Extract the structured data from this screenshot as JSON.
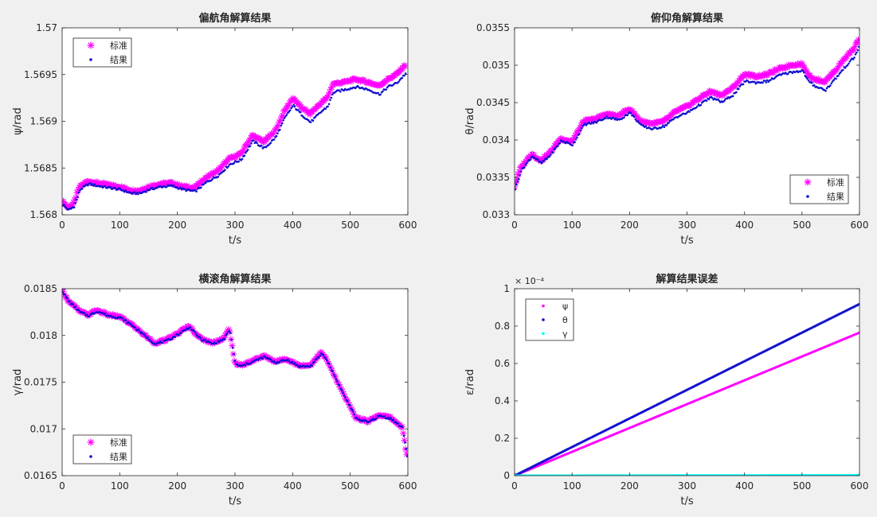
{
  "chart_data": [
    {
      "type": "scatter",
      "title": "偏航角解算结果",
      "xlabel": "t/s",
      "ylabel": "ψ/rad",
      "xlim": [
        0,
        600
      ],
      "ylim": [
        1.568,
        1.57
      ],
      "xticks": [
        0,
        100,
        200,
        300,
        400,
        500,
        600
      ],
      "xtick_labels": [
        "0",
        "100",
        "200",
        "300",
        "400",
        "500",
        "600"
      ],
      "yticks": [
        1.568,
        1.5685,
        1.569,
        1.5695,
        1.57
      ],
      "ytick_labels": [
        "1.568",
        "1.5685",
        "1.569",
        "1.5695",
        "1.57"
      ],
      "exponent_label": "",
      "legend": {
        "position": "top-left",
        "entries": [
          "标准",
          "结果"
        ]
      },
      "grid": false,
      "series": [
        {
          "name": "标准",
          "marker": "star",
          "color": "#ff00ff",
          "x": [
            0,
            10,
            20,
            30,
            45,
            60,
            80,
            100,
            120,
            135,
            150,
            170,
            190,
            210,
            230,
            250,
            270,
            290,
            310,
            330,
            350,
            370,
            385,
            400,
            415,
            430,
            450,
            460,
            470,
            490,
            510,
            530,
            550,
            565,
            580,
            595
          ],
          "y": [
            1.56815,
            1.56808,
            1.56812,
            1.5683,
            1.56836,
            1.56834,
            1.56832,
            1.5683,
            1.56826,
            1.56826,
            1.5683,
            1.56833,
            1.56834,
            1.5683,
            1.56829,
            1.5684,
            1.56847,
            1.5686,
            1.56865,
            1.56885,
            1.56878,
            1.5689,
            1.5691,
            1.56925,
            1.56915,
            1.56908,
            1.5692,
            1.56925,
            1.5694,
            1.56942,
            1.56945,
            1.56942,
            1.56938,
            1.56945,
            1.5695,
            1.5696
          ]
        },
        {
          "name": "结果",
          "marker": "dot",
          "color": "#1010d0",
          "x": [
            0,
            10,
            20,
            30,
            45,
            60,
            80,
            100,
            120,
            135,
            150,
            170,
            190,
            210,
            230,
            250,
            270,
            290,
            310,
            330,
            350,
            370,
            385,
            400,
            415,
            430,
            450,
            460,
            470,
            490,
            510,
            530,
            550,
            565,
            580,
            595
          ],
          "y": [
            1.56812,
            1.56806,
            1.5681,
            1.56828,
            1.56834,
            1.56832,
            1.5683,
            1.56828,
            1.56824,
            1.56824,
            1.56828,
            1.56831,
            1.56832,
            1.56828,
            1.56826,
            1.56836,
            1.56843,
            1.56855,
            1.5686,
            1.5688,
            1.56872,
            1.56884,
            1.56904,
            1.56918,
            1.56908,
            1.569,
            1.56912,
            1.56917,
            1.56932,
            1.56935,
            1.56938,
            1.56935,
            1.5693,
            1.56938,
            1.56942,
            1.56952
          ]
        }
      ]
    },
    {
      "type": "scatter",
      "title": "俯仰角解算结果",
      "xlabel": "t/s",
      "ylabel": "θ/rad",
      "xlim": [
        0,
        600
      ],
      "ylim": [
        0.033,
        0.0355
      ],
      "xticks": [
        0,
        100,
        200,
        300,
        400,
        500,
        600
      ],
      "xtick_labels": [
        "0",
        "100",
        "200",
        "300",
        "400",
        "500",
        "600"
      ],
      "yticks": [
        0.033,
        0.0335,
        0.034,
        0.0345,
        0.035,
        0.0355
      ],
      "ytick_labels": [
        "0.033",
        "0.0335",
        "0.034",
        "0.0345",
        "0.035",
        "0.0355"
      ],
      "exponent_label": "",
      "legend": {
        "position": "bottom-right",
        "entries": [
          "标准",
          "结果"
        ]
      },
      "grid": false,
      "series": [
        {
          "name": "标准",
          "marker": "star",
          "color": "#ff00ff",
          "x": [
            0,
            10,
            20,
            30,
            45,
            60,
            80,
            100,
            120,
            140,
            160,
            180,
            200,
            220,
            240,
            260,
            280,
            300,
            320,
            340,
            360,
            380,
            400,
            420,
            440,
            460,
            480,
            500,
            510,
            520,
            540,
            560,
            575,
            590,
            598
          ],
          "y": [
            0.03338,
            0.03362,
            0.03372,
            0.03382,
            0.03372,
            0.03382,
            0.03402,
            0.03398,
            0.03425,
            0.03428,
            0.03435,
            0.03432,
            0.03442,
            0.03425,
            0.03422,
            0.03425,
            0.03438,
            0.03445,
            0.03455,
            0.03465,
            0.0346,
            0.0347,
            0.03488,
            0.03485,
            0.03488,
            0.03495,
            0.035,
            0.03502,
            0.03488,
            0.03482,
            0.03478,
            0.03495,
            0.0351,
            0.03522,
            0.03535
          ]
        },
        {
          "name": "结果",
          "marker": "dot",
          "color": "#1010d0",
          "x": [
            0,
            10,
            20,
            30,
            45,
            60,
            80,
            100,
            120,
            140,
            160,
            180,
            200,
            220,
            240,
            260,
            280,
            300,
            320,
            340,
            360,
            380,
            400,
            420,
            440,
            460,
            480,
            500,
            510,
            520,
            540,
            560,
            575,
            590,
            598
          ],
          "y": [
            0.03336,
            0.0336,
            0.0337,
            0.0338,
            0.0337,
            0.0338,
            0.034,
            0.03395,
            0.03422,
            0.03425,
            0.03432,
            0.03428,
            0.03438,
            0.0342,
            0.03416,
            0.0342,
            0.03432,
            0.03438,
            0.03448,
            0.03458,
            0.03452,
            0.03462,
            0.0348,
            0.03478,
            0.0348,
            0.03488,
            0.03492,
            0.03494,
            0.0348,
            0.03474,
            0.03468,
            0.03486,
            0.035,
            0.03512,
            0.03525
          ]
        }
      ]
    },
    {
      "type": "scatter",
      "title": "横滚角解算结果",
      "xlabel": "t/s",
      "ylabel": "γ/rad",
      "xlim": [
        0,
        600
      ],
      "ylim": [
        0.0165,
        0.0185
      ],
      "xticks": [
        0,
        100,
        200,
        300,
        400,
        500,
        600
      ],
      "xtick_labels": [
        "0",
        "100",
        "200",
        "300",
        "400",
        "500",
        "600"
      ],
      "yticks": [
        0.0165,
        0.017,
        0.0175,
        0.018,
        0.0185
      ],
      "ytick_labels": [
        "0.0165",
        "0.017",
        "0.0175",
        "0.018",
        "0.0185"
      ],
      "exponent_label": "",
      "legend": {
        "position": "bottom-left",
        "entries": [
          "标准",
          "结果"
        ]
      },
      "grid": false,
      "series": [
        {
          "name": "标准",
          "marker": "star",
          "color": "#ff00ff",
          "x": [
            0,
            10,
            20,
            30,
            45,
            60,
            80,
            100,
            120,
            140,
            160,
            180,
            200,
            220,
            240,
            260,
            280,
            290,
            300,
            310,
            330,
            350,
            370,
            390,
            410,
            430,
            450,
            460,
            470,
            490,
            510,
            530,
            550,
            570,
            590,
            598
          ],
          "y": [
            0.01848,
            0.01838,
            0.01832,
            0.01826,
            0.01822,
            0.01827,
            0.01822,
            0.0182,
            0.01812,
            0.01802,
            0.01792,
            0.01795,
            0.01802,
            0.0181,
            0.01797,
            0.01792,
            0.01797,
            0.01807,
            0.0177,
            0.01768,
            0.01773,
            0.01778,
            0.01772,
            0.01775,
            0.01768,
            0.01768,
            0.01782,
            0.01773,
            0.0176,
            0.01735,
            0.01712,
            0.01708,
            0.01715,
            0.01712,
            0.01702,
            0.01672
          ]
        },
        {
          "name": "结果",
          "marker": "dot",
          "color": "#1010d0",
          "x": [
            0,
            10,
            20,
            30,
            45,
            60,
            80,
            100,
            120,
            140,
            160,
            180,
            200,
            220,
            240,
            260,
            280,
            290,
            300,
            310,
            330,
            350,
            370,
            390,
            410,
            430,
            450,
            460,
            470,
            490,
            510,
            530,
            550,
            570,
            590,
            598
          ],
          "y": [
            0.01848,
            0.01838,
            0.01832,
            0.01826,
            0.01822,
            0.01827,
            0.01822,
            0.0182,
            0.01812,
            0.01802,
            0.01792,
            0.01795,
            0.01802,
            0.0181,
            0.01797,
            0.01792,
            0.01797,
            0.01807,
            0.0177,
            0.01768,
            0.01773,
            0.01778,
            0.01772,
            0.01775,
            0.01768,
            0.01768,
            0.01782,
            0.01773,
            0.0176,
            0.01735,
            0.01712,
            0.01708,
            0.01715,
            0.01712,
            0.01702,
            0.01672
          ]
        }
      ]
    },
    {
      "type": "line",
      "title": "解算结果误差",
      "xlabel": "t/s",
      "ylabel": "ε/rad",
      "xlim": [
        0,
        600
      ],
      "ylim": [
        0,
        1
      ],
      "xticks": [
        0,
        100,
        200,
        300,
        400,
        500,
        600
      ],
      "xtick_labels": [
        "0",
        "100",
        "200",
        "300",
        "400",
        "500",
        "600"
      ],
      "yticks": [
        0,
        0.2,
        0.4,
        0.6,
        0.8,
        1
      ],
      "ytick_labels": [
        "0",
        "0.2",
        "0.4",
        "0.6",
        "0.8",
        "1"
      ],
      "exponent_label": "× 10⁻⁴",
      "legend": {
        "position": "top-left",
        "entries": [
          "ψ",
          "θ",
          "γ"
        ]
      },
      "grid": false,
      "series": [
        {
          "name": "ψ",
          "marker": "dot",
          "color": "#ff00ff",
          "x": [
            0,
            600
          ],
          "y": [
            0,
            0.765
          ]
        },
        {
          "name": "θ",
          "marker": "dot",
          "color": "#1010d0",
          "x": [
            0,
            600
          ],
          "y": [
            0,
            0.918
          ]
        },
        {
          "name": "γ",
          "marker": "dot",
          "color": "#00ffff",
          "x": [
            0,
            600
          ],
          "y": [
            0,
            0.002
          ]
        }
      ]
    }
  ]
}
